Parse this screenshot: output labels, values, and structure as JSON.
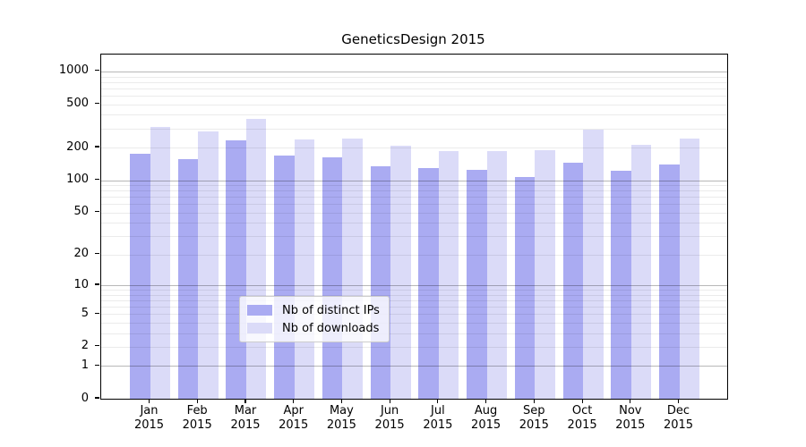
{
  "chart_data": {
    "type": "bar",
    "title": "GeneticsDesign 2015",
    "categories": [
      "Jan 2015",
      "Feb 2015",
      "Mar 2015",
      "Apr 2015",
      "May 2015",
      "Jun 2015",
      "Jul 2015",
      "Aug 2015",
      "Sep 2015",
      "Oct 2015",
      "Nov 2015",
      "Dec 2015"
    ],
    "series": [
      {
        "name": "Nb of distinct IPs",
        "color": "#aaabf2",
        "values": [
          175,
          155,
          235,
          168,
          163,
          134,
          130,
          125,
          107,
          145,
          122,
          140
        ]
      },
      {
        "name": "Nb of downloads",
        "color": "#dbdbf8",
        "values": [
          310,
          280,
          365,
          237,
          243,
          208,
          185,
          187,
          188,
          292,
          213,
          240
        ]
      }
    ],
    "yscale": "log1p",
    "ylim": [
      0,
      1500
    ],
    "y_ticks": [
      1000,
      500,
      200,
      100,
      50,
      20,
      10,
      5,
      2,
      1,
      0
    ],
    "y_major_gridlines": [
      1,
      10,
      100,
      1000
    ],
    "grid": true,
    "legend_position": "lower center",
    "axis_color": "#000000",
    "background_color": "#ffffff"
  }
}
